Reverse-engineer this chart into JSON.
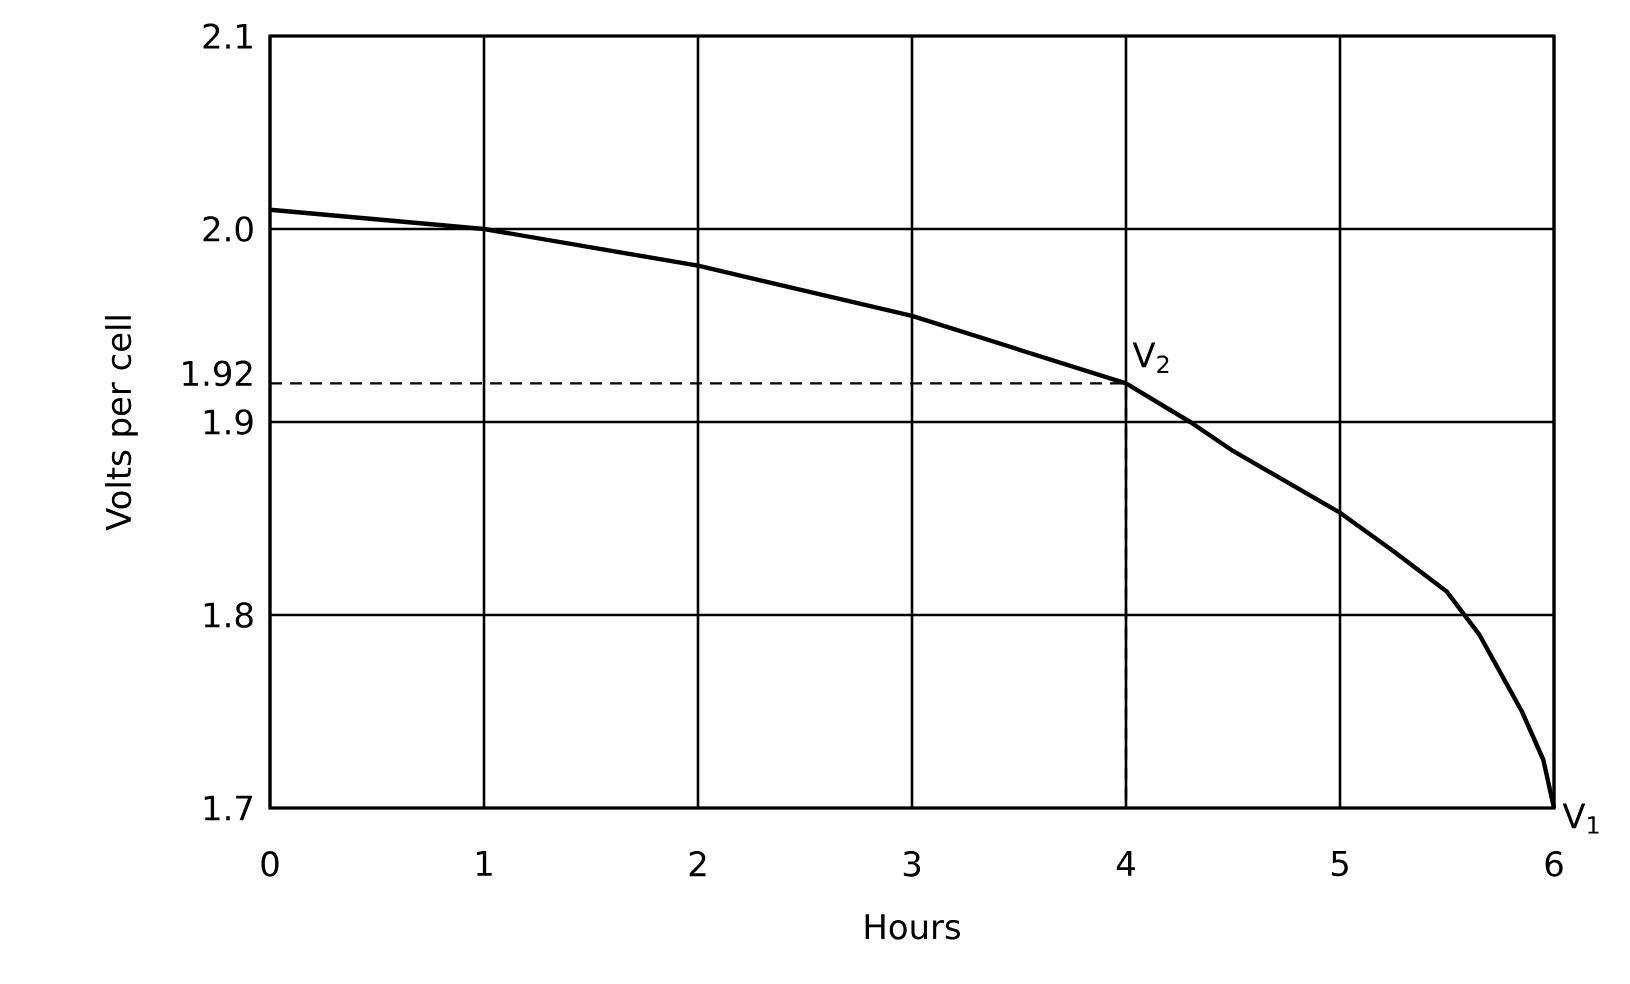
{
  "chart_data": {
    "type": "line",
    "xlabel": "Hours",
    "ylabel": "Volts per cell",
    "xlim": [
      0,
      6
    ],
    "ylim": [
      1.7,
      2.1
    ],
    "xticks": [
      0,
      1,
      2,
      3,
      4,
      5,
      6
    ],
    "yticks": [
      1.7,
      1.8,
      1.9,
      1.92,
      {
        "value": 2,
        "label": "2.0"
      },
      2.1
    ],
    "grid": true,
    "marker": "none",
    "series": [
      {
        "color": "#000000",
        "line_style": "solid",
        "x": [
          0,
          1,
          2,
          3,
          4,
          4.3,
          4.5,
          5,
          5.25,
          5.5,
          5.65,
          5.75,
          5.85,
          5.95,
          6
        ],
        "values": [
          2.01,
          2.0,
          1.981,
          1.955,
          1.92,
          1.9,
          1.885,
          1.853,
          1.833,
          1.812,
          1.79,
          1.77,
          1.75,
          1.725,
          1.7
        ]
      },
      {
        "color": "#000000",
        "line_style": "dashed",
        "x": [
          0,
          4,
          4
        ],
        "values": [
          1.92,
          1.92,
          1.7
        ]
      }
    ],
    "annotations": [
      {
        "text": "V$_{2}$",
        "x": 4,
        "y": 1.92
      },
      {
        "text": "V$_{1}$",
        "x": 6,
        "y": 1.7
      }
    ]
  }
}
